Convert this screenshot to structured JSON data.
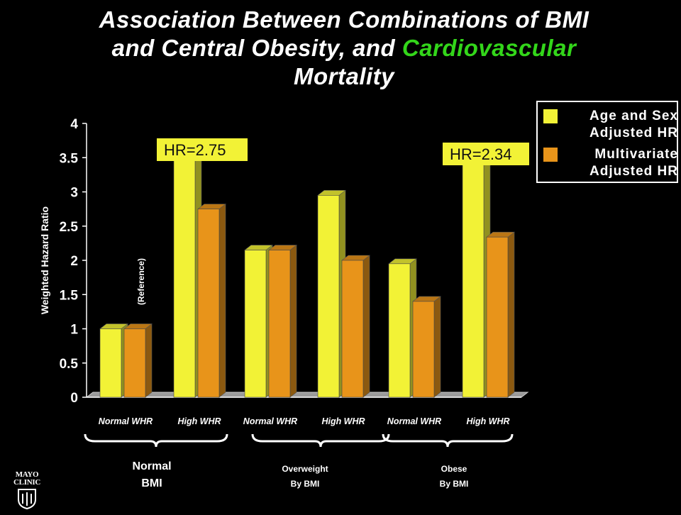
{
  "title": {
    "part1": "Association Between Combinations of BMI",
    "part2": "and Central Obesity, and ",
    "part2_highlight": "Cardiovascular",
    "part3": "Mortality"
  },
  "colors": {
    "background": "#000000",
    "series1": "#f2f236",
    "series2": "#e8941a",
    "highlight_text": "#33d61a"
  },
  "chart_data": {
    "type": "bar",
    "ylabel": "Weighted Hazard Ratio",
    "ylim": [
      0,
      4
    ],
    "yticks": [
      "0",
      "0.5",
      "1",
      "1.5",
      "2",
      "2.5",
      "3",
      "3.5",
      "4"
    ],
    "categories": [
      "Normal WHR",
      "High WHR",
      "Normal WHR",
      "High WHR",
      "Normal WHR",
      "High WHR"
    ],
    "groups": [
      {
        "label_line1": "Normal",
        "label_line2": "BMI"
      },
      {
        "label_line1": "Overweight",
        "label_line2": "By BMI"
      },
      {
        "label_line1": "Obese",
        "label_line2": "By BMI"
      }
    ],
    "series": [
      {
        "name": "Age and Sex Adjusted HR",
        "values": [
          1.0,
          3.5,
          2.15,
          2.95,
          1.95,
          3.5
        ]
      },
      {
        "name": "Multivariate Adjusted HR",
        "values": [
          1.0,
          2.75,
          2.15,
          2.0,
          1.4,
          2.34
        ]
      }
    ],
    "annotations": [
      {
        "text": "HR=2.75",
        "category_index": 1
      },
      {
        "text": "HR=2.34",
        "category_index": 5
      },
      {
        "text": "(Reference)",
        "category_index": 0
      }
    ],
    "legend": {
      "position": "top-right",
      "entries": [
        {
          "line1": "Age and Sex",
          "line2": "Adjusted HR"
        },
        {
          "line1": "Multivariate",
          "line2": "Adjusted HR"
        }
      ]
    },
    "grid": false
  },
  "logo": {
    "line1": "MAYO",
    "line2": "CLINIC"
  }
}
